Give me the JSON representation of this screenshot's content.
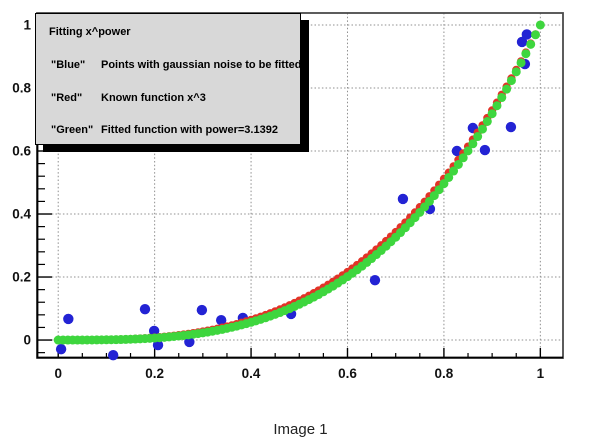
{
  "figure": {
    "caption": "Image 1"
  },
  "legend": {
    "title": "Fitting x^power",
    "entries": [
      {
        "quote": "\"Blue\"",
        "text": "Points with gaussian noise to be fitted"
      },
      {
        "quote": "\"Red\"",
        "text": "Known function x^3"
      },
      {
        "quote": "\"Green\"",
        "text": "Fitted function with power=3.1392"
      }
    ]
  },
  "chart_data": {
    "type": "scatter",
    "title": "Fitting x^power",
    "xlabel": "",
    "ylabel": "",
    "xlim": [
      -0.044,
      1.047
    ],
    "ylim": [
      -0.057,
      1.038
    ],
    "grid": "dotted-at-major-ticks",
    "x_ticks": {
      "major": [
        0,
        0.2,
        0.4,
        0.6,
        0.8,
        1
      ],
      "labels": [
        "0",
        "0.2",
        "0.4",
        "0.6",
        "0.8",
        "1"
      ],
      "minor_step": 0.05
    },
    "y_ticks": {
      "major": [
        0,
        0.2,
        0.4,
        0.6,
        0.8,
        1
      ],
      "labels": [
        "0",
        "0.2",
        "0.4",
        "0.6",
        "0.8",
        "1"
      ],
      "minor_step": 0.04
    },
    "fitted_power": 3.1392,
    "series": [
      {
        "name": "noisy_points",
        "legend": "Points with gaussian noise to be fitted",
        "color": "#2323d4",
        "marker": "circle",
        "marker_radius": 5.2,
        "points": [
          [
            0.006,
            -0.029
          ],
          [
            0.021,
            0.067
          ],
          [
            0.114,
            -0.048
          ],
          [
            0.18,
            0.098
          ],
          [
            0.199,
            0.029
          ],
          [
            0.207,
            -0.016
          ],
          [
            0.272,
            -0.006
          ],
          [
            0.298,
            0.095
          ],
          [
            0.338,
            0.063
          ],
          [
            0.383,
            0.07
          ],
          [
            0.483,
            0.083
          ],
          [
            0.657,
            0.19
          ],
          [
            0.715,
            0.448
          ],
          [
            0.771,
            0.416
          ],
          [
            0.827,
            0.6
          ],
          [
            0.86,
            0.673
          ],
          [
            0.885,
            0.603
          ],
          [
            0.939,
            0.676
          ],
          [
            0.962,
            0.946
          ],
          [
            0.968,
            0.876
          ],
          [
            0.972,
            0.97
          ]
        ]
      },
      {
        "name": "known_function",
        "legend": "Known function x^3",
        "color": "#e23327",
        "marker": "circle",
        "marker_radius": 4.1,
        "function_exponent": 3,
        "x_start": 0,
        "x_end": 1,
        "n_points": 101
      },
      {
        "name": "fitted_function",
        "legend": "Fitted function with power=3.1392",
        "color": "#3ed63e",
        "marker": "circle",
        "marker_radius": 4.5,
        "function_exponent": 3.1392,
        "x_start": 0,
        "x_end": 1,
        "n_points": 101
      }
    ]
  },
  "style_colors": {
    "grid": "#8f8f8f",
    "frame": "#4a4a4a",
    "axis": "#000000",
    "tick_label": "#111111",
    "legend_bg": "#d8d8d8",
    "legend_shadow": "#000000"
  }
}
